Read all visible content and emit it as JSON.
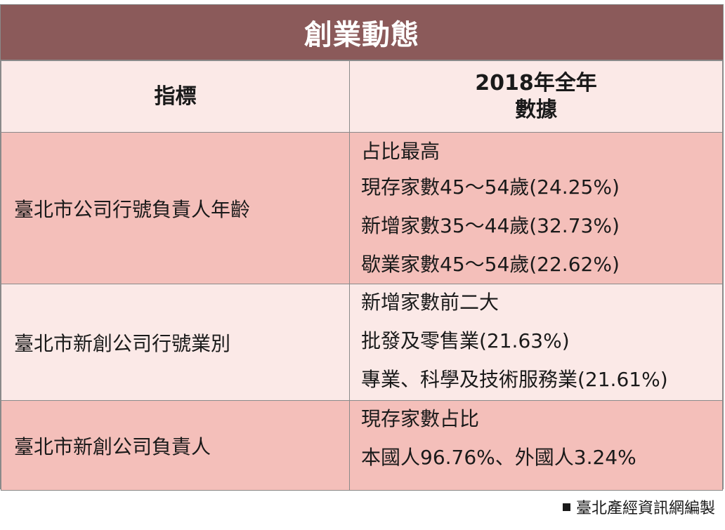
{
  "title": "創業動態",
  "headers": {
    "indicator": "指標",
    "data_line1": "2018年全年",
    "data_line2": "數據"
  },
  "rows": [
    {
      "label": "臺北市公司行號負責人年齡",
      "values": [
        "占比最高",
        "現存家數45～54歲(24.25%)",
        "新增家數35～44歲(32.73%)",
        "歇業家數45～54歲(22.62%)"
      ]
    },
    {
      "label": "臺北市新創公司行號業別",
      "values": [
        "新增家數前二大",
        "批發及零售業(21.63%)",
        "專業、科學及技術服務業(21.61%)"
      ]
    },
    {
      "label": "臺北市新創公司負責人",
      "values": [
        "現存家數占比",
        "本國人96.76%、外國人3.24%"
      ]
    }
  ],
  "footer": "臺北產經資訊網編製",
  "colors": {
    "title_bg": "#8b5a5a",
    "row_pink": "#f4bfba",
    "row_light": "#fbe9e7"
  }
}
